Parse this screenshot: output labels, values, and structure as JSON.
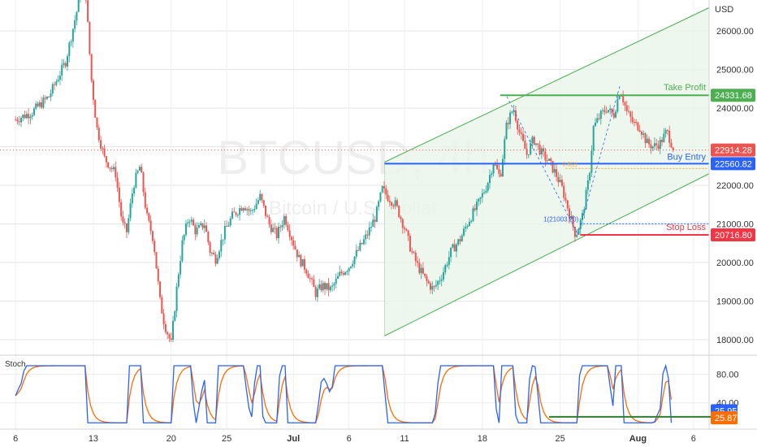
{
  "chart_data": {
    "type": "candlestick",
    "symbol_watermark": "BTCUSD, 4h",
    "subtitle_watermark": "Bitcoin / U.S. Dollar",
    "currency": "USD",
    "y_ticks": [
      "26000.00",
      "25000.00",
      "24000.00",
      "23000.00",
      "22000.00",
      "21000.00",
      "20000.00",
      "19000.00",
      "18000.00"
    ],
    "y_tick_values": [
      26000,
      25000,
      24000,
      23000,
      22000,
      21000,
      20000,
      19000,
      18000
    ],
    "ylim": [
      17600,
      26800
    ],
    "x_ticks": [
      "6",
      "13",
      "20",
      "25",
      "Jul",
      "6",
      "11",
      "18",
      "25",
      "Aug",
      "6"
    ],
    "x_tick_days": [
      0,
      7,
      14,
      19,
      25,
      30,
      35,
      42,
      49,
      56,
      61
    ],
    "xlim": [
      -1.4,
      62.4
    ],
    "series_close": [
      [
        0,
        23700
      ],
      [
        1.5,
        23900
      ],
      [
        3,
        24300
      ],
      [
        4.5,
        25200
      ],
      [
        5.5,
        26500
      ],
      [
        6.2,
        27500
      ],
      [
        6.8,
        24800
      ],
      [
        7.3,
        23500
      ],
      [
        8,
        22700
      ],
      [
        9,
        22300
      ],
      [
        9.6,
        21000
      ],
      [
        10,
        20800
      ],
      [
        10.6,
        22000
      ],
      [
        11.2,
        22500
      ],
      [
        11.8,
        21200
      ],
      [
        12.4,
        20600
      ],
      [
        13,
        19000
      ],
      [
        13.4,
        18400
      ],
      [
        14,
        17900
      ],
      [
        14.6,
        19600
      ],
      [
        15,
        20500
      ],
      [
        15.6,
        21200
      ],
      [
        16.2,
        20800
      ],
      [
        17,
        21000
      ],
      [
        17.5,
        20300
      ],
      [
        18,
        20100
      ],
      [
        18.8,
        20800
      ],
      [
        19.5,
        21200
      ],
      [
        20.5,
        21500
      ],
      [
        21.2,
        21300
      ],
      [
        22,
        21700
      ],
      [
        22.8,
        21000
      ],
      [
        23.5,
        20700
      ],
      [
        24.2,
        21200
      ],
      [
        25,
        20500
      ],
      [
        25.5,
        20100
      ],
      [
        26.2,
        19800
      ],
      [
        27,
        19200
      ],
      [
        27.6,
        19400
      ],
      [
        28.4,
        19300
      ],
      [
        29.2,
        19700
      ],
      [
        30,
        19900
      ],
      [
        30.8,
        20300
      ],
      [
        31.6,
        20700
      ],
      [
        32.4,
        21200
      ],
      [
        33,
        21900
      ],
      [
        33.5,
        21700
      ],
      [
        34.2,
        21500
      ],
      [
        35,
        20900
      ],
      [
        35.6,
        20300
      ],
      [
        36.2,
        19900
      ],
      [
        37,
        19500
      ],
      [
        37.6,
        19300
      ],
      [
        38.4,
        19700
      ],
      [
        39.2,
        20300
      ],
      [
        40,
        20600
      ],
      [
        40.8,
        21100
      ],
      [
        41.6,
        21500
      ],
      [
        42.4,
        22000
      ],
      [
        43,
        22600
      ],
      [
        43.6,
        22200
      ],
      [
        44.2,
        23600
      ],
      [
        44.8,
        24000
      ],
      [
        45.4,
        23300
      ],
      [
        46,
        22800
      ],
      [
        46.6,
        23200
      ],
      [
        47.4,
        22800
      ],
      [
        48,
        22600
      ],
      [
        48.6,
        22300
      ],
      [
        49.2,
        21900
      ],
      [
        49.8,
        21300
      ],
      [
        50.4,
        20700
      ],
      [
        51,
        21200
      ],
      [
        51.6,
        22200
      ],
      [
        52,
        23500
      ],
      [
        52.6,
        23800
      ],
      [
        53.2,
        24000
      ],
      [
        53.8,
        23800
      ],
      [
        54.4,
        24500
      ],
      [
        55,
        23900
      ],
      [
        55.6,
        23600
      ],
      [
        56.2,
        23500
      ],
      [
        56.8,
        23100
      ],
      [
        57.4,
        23000
      ],
      [
        58,
        23100
      ],
      [
        58.6,
        23400
      ],
      [
        59.2,
        22950
      ]
    ],
    "last_price": "22914.28",
    "channel_upper": {
      "x1": 33.2,
      "y1": 22600,
      "x2": 62.4,
      "y2": 26600
    },
    "channel_lower": {
      "x1": 33.2,
      "y1": 18100,
      "x2": 62.4,
      "y2": 22300
    },
    "annotations": {
      "take_profit": {
        "label": "Take Profit",
        "value": 24331.68,
        "value_text": "24331.68",
        "color": "#4caf50"
      },
      "buy_entry": {
        "label": "Buy Entry",
        "value": 22560.82,
        "value_text": "22560.82",
        "color": "#2962ff"
      },
      "stop_loss": {
        "label": "Stop Loss",
        "value": 20716.8,
        "value_text": "20716.80",
        "color": "#f23645"
      },
      "fib_label": "1(21003.20)",
      "fib_value": 21003.2,
      "fib_small": "0.5(2)"
    },
    "stoch": {
      "label": "Stoch",
      "y_ticks": [
        "80.00",
        "40.00"
      ],
      "y_tick_values": [
        80,
        40
      ],
      "ylim": [
        10,
        100
      ],
      "k_value": "25.95",
      "d_value": "25.87",
      "k_color": "#2962ff",
      "d_color": "#ff6d00",
      "support_value": 25.0
    },
    "colors": {
      "up": "#26a69a",
      "down": "#ef5350",
      "channel": "#4caf50",
      "channel_fill": "#e8f5e9",
      "watermark": "#f0f0f0",
      "grid": "#e6e6e6"
    }
  }
}
